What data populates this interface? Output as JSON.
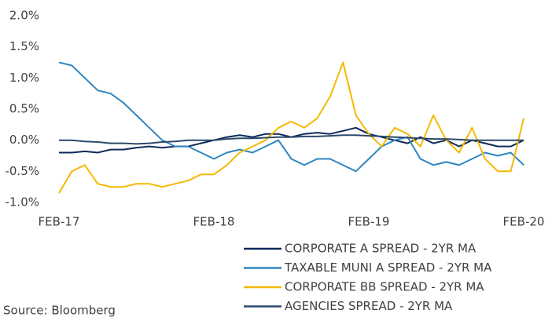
{
  "chart_data": {
    "type": "line",
    "categories": [
      "FEB-17",
      null,
      null,
      null,
      null,
      null,
      null,
      null,
      null,
      null,
      null,
      null,
      "FEB-18",
      null,
      null,
      null,
      null,
      null,
      null,
      null,
      null,
      null,
      null,
      null,
      "FEB-19",
      null,
      null,
      null,
      null,
      null,
      null,
      null,
      null,
      null,
      null,
      null,
      "FEB-20"
    ],
    "series": [
      {
        "name": "CORPORATE A SPREAD - 2YR MA",
        "color": "#0e2a5a",
        "values": [
          -0.2,
          -0.2,
          -0.18,
          -0.2,
          -0.15,
          -0.15,
          -0.12,
          -0.1,
          -0.12,
          -0.1,
          -0.1,
          -0.05,
          0.0,
          0.05,
          0.08,
          0.05,
          0.1,
          0.1,
          0.05,
          0.1,
          0.12,
          0.1,
          0.15,
          0.2,
          0.1,
          0.05,
          0.0,
          -0.05,
          0.05,
          -0.05,
          0.0,
          -0.1,
          0.0,
          -0.05,
          -0.1,
          -0.1,
          0.0
        ]
      },
      {
        "name": "TAXABLE MUNI A SPREAD - 2YR MA",
        "color": "#2f86c0",
        "values": [
          1.25,
          1.2,
          1.0,
          0.8,
          0.75,
          0.6,
          0.4,
          0.2,
          0.0,
          -0.1,
          -0.1,
          -0.2,
          -0.3,
          -0.2,
          -0.15,
          -0.2,
          -0.1,
          0.0,
          -0.3,
          -0.4,
          -0.3,
          -0.3,
          -0.4,
          -0.5,
          -0.3,
          -0.1,
          0.0,
          0.05,
          -0.3,
          -0.4,
          -0.35,
          -0.4,
          -0.3,
          -0.2,
          -0.25,
          -0.2,
          -0.4
        ]
      },
      {
        "name": "CORPORATE BB SPREAD - 2YR MA",
        "color": "#f5b800",
        "values": [
          -0.85,
          -0.5,
          -0.4,
          -0.7,
          -0.75,
          -0.75,
          -0.7,
          -0.7,
          -0.75,
          -0.7,
          -0.65,
          -0.55,
          -0.55,
          -0.4,
          -0.2,
          -0.1,
          0.0,
          0.2,
          0.3,
          0.2,
          0.35,
          0.7,
          1.25,
          0.4,
          0.1,
          -0.1,
          0.2,
          0.1,
          -0.1,
          0.4,
          0.0,
          -0.2,
          0.2,
          -0.3,
          -0.5,
          -0.5,
          0.35
        ]
      },
      {
        "name": "AGENCIES SPREAD - 2YR MA",
        "color": "#2b4a6b",
        "values": [
          0.0,
          0.0,
          -0.02,
          -0.03,
          -0.05,
          -0.05,
          -0.06,
          -0.05,
          -0.03,
          -0.02,
          0.0,
          0.0,
          0.0,
          0.02,
          0.03,
          0.03,
          0.04,
          0.05,
          0.05,
          0.06,
          0.06,
          0.07,
          0.08,
          0.08,
          0.07,
          0.06,
          0.05,
          0.04,
          0.03,
          0.02,
          0.02,
          0.01,
          0.0,
          0.0,
          0.0,
          0.0,
          0.0
        ]
      }
    ],
    "ylim": [
      -1.0,
      2.0
    ],
    "yticks": [
      {
        "value": -1.0,
        "label": "-1.0%"
      },
      {
        "value": -0.5,
        "label": "-0.5%"
      },
      {
        "value": 0.0,
        "label": "0.0%"
      },
      {
        "value": 0.5,
        "label": "0.5%"
      },
      {
        "value": 1.0,
        "label": "1.0%"
      },
      {
        "value": 1.5,
        "label": "1.5%"
      },
      {
        "value": 2.0,
        "label": "2.0%"
      }
    ],
    "legend": "bottom-right",
    "source": "Source: Bloomberg"
  }
}
